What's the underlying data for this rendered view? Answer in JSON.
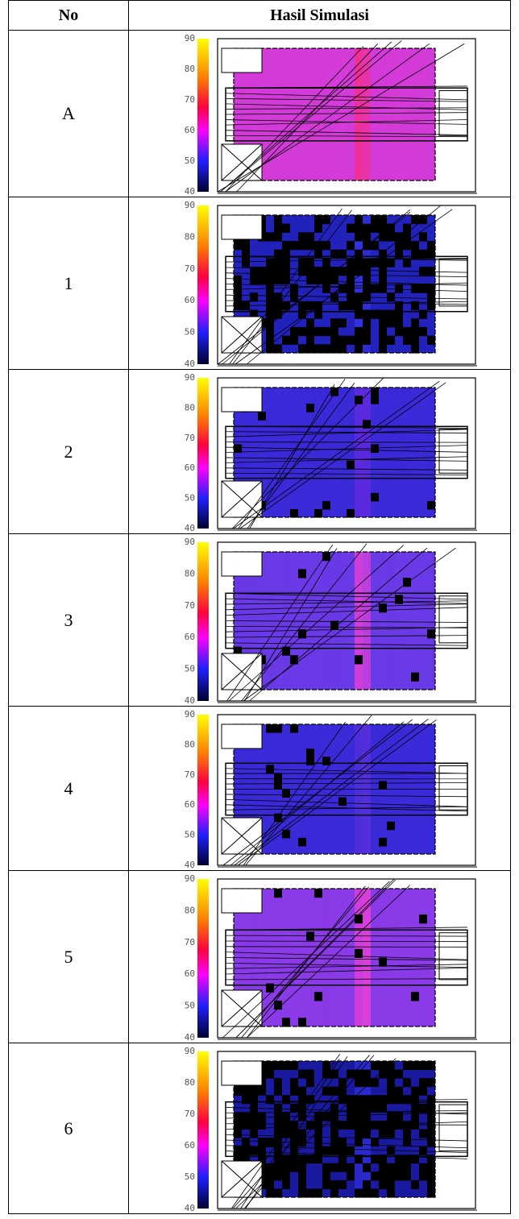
{
  "table": {
    "header": [
      "No",
      "Hasil Simulasi"
    ],
    "colorbar_ticks": [
      90,
      80,
      70,
      60,
      50,
      40
    ],
    "rows": [
      "A",
      "1",
      "2",
      "3",
      "4",
      "5",
      "6"
    ]
  }
}
